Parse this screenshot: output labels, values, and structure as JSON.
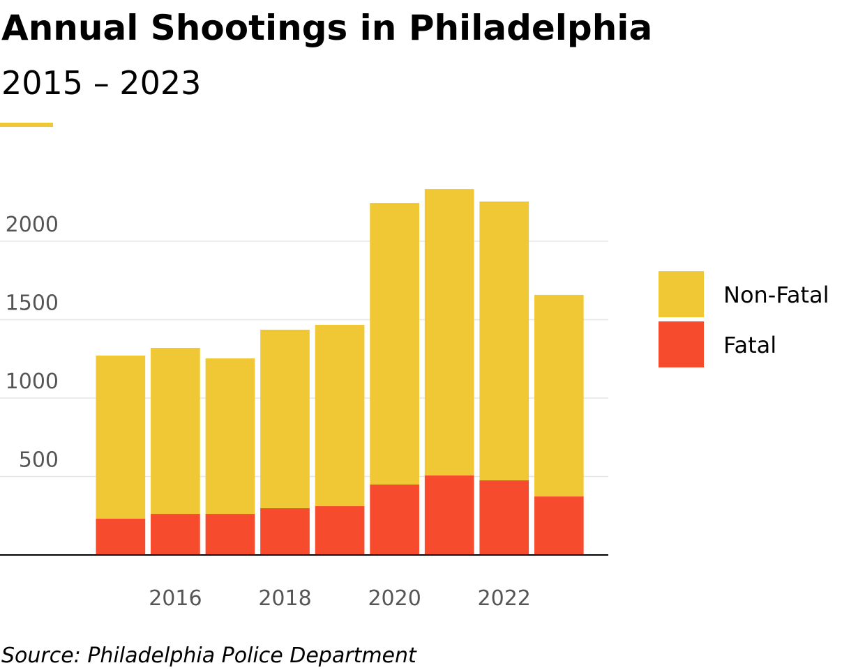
{
  "chart_data": {
    "type": "stacked-bar",
    "title": "Annual Shootings in Philadelphia",
    "subtitle": "2015 – 2023",
    "source": "Source: Philadelphia Police Department",
    "x": [
      2015,
      2016,
      2017,
      2018,
      2019,
      2020,
      2021,
      2022,
      2023
    ],
    "xlim": [
      2012.8,
      2023.9
    ],
    "xticks": [
      2016,
      2018,
      2020,
      2022
    ],
    "ylim": [
      0,
      2400
    ],
    "yticks": [
      500,
      1000,
      1500,
      2000
    ],
    "grid": true,
    "legend": "right",
    "series": [
      {
        "name": "Fatal",
        "color": "#f74b2e",
        "values": [
          231,
          262,
          262,
          298,
          311,
          449,
          507,
          476,
          373
        ]
      },
      {
        "name": "Non-Fatal",
        "color": "#f0c836",
        "values": [
          1040,
          1058,
          991,
          1138,
          1156,
          1795,
          1826,
          1777,
          1285
        ]
      }
    ]
  }
}
